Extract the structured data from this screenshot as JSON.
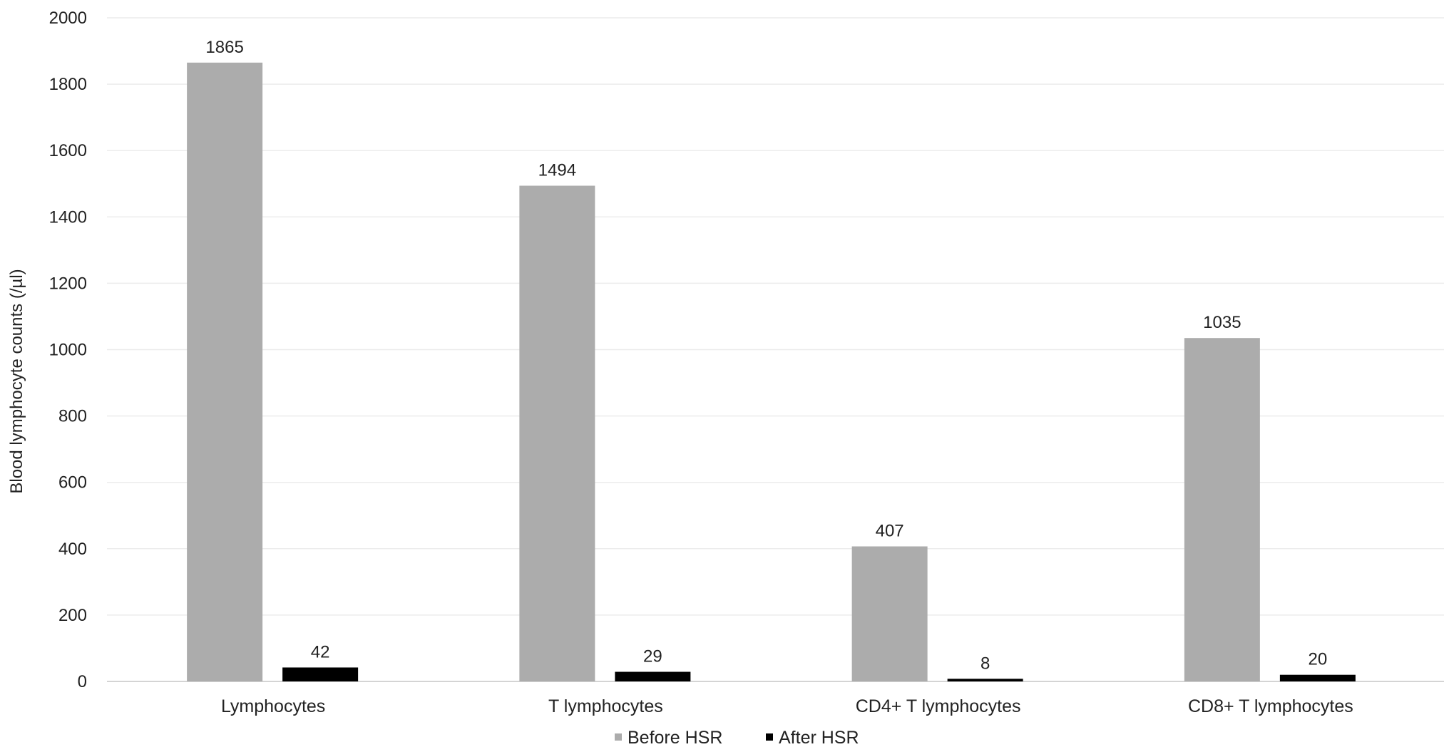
{
  "chart_data": {
    "type": "bar",
    "ylabel": "Blood lymphocyte counts (/µl)",
    "xlabel": "",
    "ylim": [
      0,
      2000
    ],
    "yticks": [
      0,
      200,
      400,
      600,
      800,
      1000,
      1200,
      1400,
      1600,
      1800,
      2000
    ],
    "grid": true,
    "legend_position": "bottom",
    "categories": [
      "Lymphocytes",
      "T lymphocytes",
      "CD4+ T lymphocytes",
      "CD8+ T lymphocytes"
    ],
    "series": [
      {
        "name": "Before HSR",
        "color": "#acacac",
        "values": [
          1865,
          1494,
          407,
          1035
        ]
      },
      {
        "name": "After HSR",
        "color": "#000000",
        "values": [
          42,
          29,
          8,
          20
        ]
      }
    ]
  }
}
